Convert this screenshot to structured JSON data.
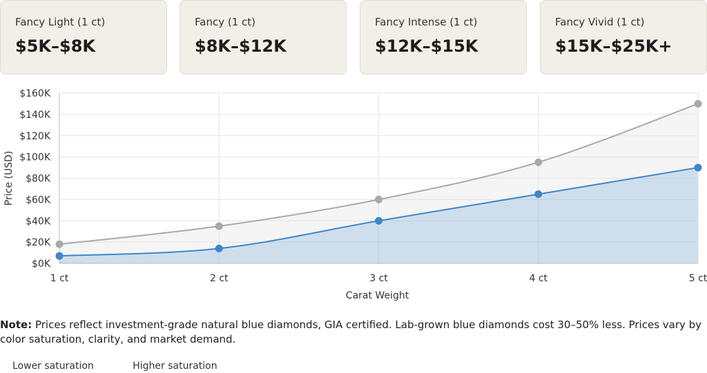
{
  "cards": [
    {
      "label": "Fancy Light (1 ct)",
      "value": "$5K–$8K"
    },
    {
      "label": "Fancy (1 ct)",
      "value": "$8K–$12K"
    },
    {
      "label": "Fancy Intense (1 ct)",
      "value": "$12K–$15K"
    },
    {
      "label": "Fancy Vivid (1 ct)",
      "value": "$15K–$25K+"
    }
  ],
  "chart_data": {
    "type": "area",
    "categories": [
      "1 ct",
      "2 ct",
      "3 ct",
      "4 ct",
      "5 ct"
    ],
    "series": [
      {
        "name": "Higher saturation",
        "color": "#a9a9a9",
        "values": [
          18000,
          35000,
          60000,
          95000,
          150000
        ]
      },
      {
        "name": "Lower saturation",
        "color": "#3f86c8",
        "values": [
          7000,
          14000,
          40000,
          65000,
          90000
        ]
      }
    ],
    "yticks": [
      "$0K",
      "$20K",
      "$40K",
      "$60K",
      "$80K",
      "$100K",
      "$120K",
      "$140K",
      "$160K"
    ],
    "ylim": [
      0,
      160000
    ],
    "xlabel": "Carat Weight",
    "ylabel": "Price (USD)",
    "grid": true
  },
  "note": {
    "prefix": "Note:",
    "text": " Prices reflect investment-grade natural blue diamonds, GIA certified. Lab-grown blue diamonds cost 30–50% less. Prices vary by color saturation, clarity, and market demand."
  },
  "legend": {
    "lower": "Lower saturation",
    "higher": "Higher saturation"
  }
}
